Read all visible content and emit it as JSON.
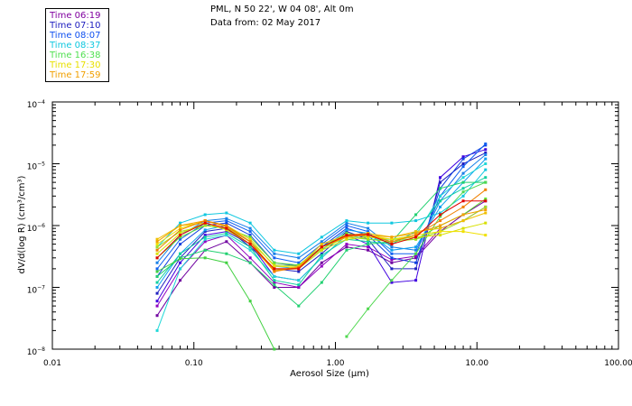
{
  "header": {
    "line1": "PML, N 50 22', W 04 08', Alt 0m",
    "line2": "Data from: 02 May 2017"
  },
  "chart_data": {
    "type": "line",
    "xscale": "log",
    "yscale": "log",
    "xlim": [
      0.01,
      100
    ],
    "ylim": [
      1e-08,
      0.0001
    ],
    "xlabel": "Aerosol Size (μm)",
    "ylabel": "dV/d(log R) (cm³/cm³)",
    "x_ticks": [
      {
        "value": 0.01,
        "label": "0.01"
      },
      {
        "value": 0.1,
        "label": "0.10"
      },
      {
        "value": 1,
        "label": "1.00"
      },
      {
        "value": 10,
        "label": "10.00"
      },
      {
        "value": 100,
        "label": "100.00"
      }
    ],
    "y_ticks": [
      {
        "value": 1e-08,
        "mantissa": "10",
        "exp": "−8"
      },
      {
        "value": 1e-07,
        "mantissa": "10",
        "exp": "−7"
      },
      {
        "value": 1e-06,
        "mantissa": "10",
        "exp": "−6"
      },
      {
        "value": 1e-05,
        "mantissa": "10",
        "exp": "−5"
      },
      {
        "value": 0.0001,
        "mantissa": "10",
        "exp": "−4"
      }
    ],
    "sizes": [
      0.055,
      0.08,
      0.12,
      0.17,
      0.25,
      0.37,
      0.55,
      0.8,
      1.2,
      1.7,
      2.5,
      3.7,
      5.5,
      8.0,
      11.5
    ],
    "legend": [
      {
        "label": "Time 06:19",
        "color": "#8000a0"
      },
      {
        "label": "Time 07:10",
        "color": "#2020c0"
      },
      {
        "label": "Time 08:07",
        "color": "#1050f0"
      },
      {
        "label": "Time 08:37",
        "color": "#10c8e0"
      },
      {
        "label": "Time 16:38",
        "color": "#50e050"
      },
      {
        "label": "Time 17:30",
        "color": "#e8e000"
      },
      {
        "label": "Time 17:59",
        "color": "#f0a000"
      }
    ],
    "series": [
      {
        "color": "#7000a0",
        "values": [
          3.5e-08,
          1.3e-07,
          4e-07,
          5.5e-07,
          2.5e-07,
          1e-07,
          1e-07,
          2.5e-07,
          4.5e-07,
          4e-07,
          2.5e-07,
          3e-07,
          8e-07,
          1.5e-06,
          2.5e-06
        ]
      },
      {
        "color": "#9000c0",
        "values": [
          5e-08,
          2e-07,
          5.5e-07,
          7e-07,
          3e-07,
          1.2e-07,
          1e-07,
          2.2e-07,
          5e-07,
          4.5e-07,
          2.8e-07,
          3.2e-07,
          9e-07,
          1.2e-06,
          2e-06
        ]
      },
      {
        "color": "#4000e0",
        "values": [
          6e-08,
          2.5e-07,
          7e-07,
          8e-07,
          5e-07,
          1.5e-07,
          1.3e-07,
          3e-07,
          7e-07,
          5e-07,
          1.2e-07,
          1.3e-07,
          6e-06,
          1.3e-05,
          1.7e-05
        ]
      },
      {
        "color": "#2020c0",
        "values": [
          8e-08,
          3e-07,
          8e-07,
          9e-07,
          4.5e-07,
          2e-07,
          1.8e-07,
          3.5e-07,
          8e-07,
          6e-07,
          2e-07,
          2e-07,
          5e-06,
          1e-05,
          1.5e-05
        ]
      },
      {
        "color": "#1040e0",
        "values": [
          1.5e-07,
          5e-07,
          1e-06,
          1.1e-06,
          7e-07,
          2.5e-07,
          2.2e-07,
          4.5e-07,
          9e-07,
          7e-07,
          3e-07,
          2.5e-07,
          4e-06,
          1.2e-05,
          2e-05
        ]
      },
      {
        "color": "#1060f0",
        "values": [
          2e-07,
          6e-07,
          1.1e-06,
          1.2e-06,
          8e-07,
          3e-07,
          2.5e-07,
          5e-07,
          1e-06,
          8e-07,
          3.5e-07,
          3.5e-07,
          3e-06,
          9e-06,
          2.1e-05
        ]
      },
      {
        "color": "#1880e8",
        "values": [
          2.5e-07,
          7e-07,
          1.2e-06,
          1.3e-06,
          9e-07,
          3.5e-07,
          3e-07,
          5.5e-07,
          1.1e-06,
          9e-07,
          4.5e-07,
          4e-07,
          2.5e-06,
          7e-06,
          1.4e-05
        ]
      },
      {
        "color": "#10a0f0",
        "values": [
          1e-07,
          3.5e-07,
          8.5e-07,
          1e-06,
          6e-07,
          2.2e-07,
          2e-07,
          4e-07,
          8.5e-07,
          7.5e-07,
          4e-07,
          4.5e-07,
          2e-06,
          5e-06,
          1.2e-05
        ]
      },
      {
        "color": "#10c8e0",
        "values": [
          4.5e-07,
          1.1e-06,
          1.5e-06,
          1.6e-06,
          1.1e-06,
          4e-07,
          3.5e-07,
          6.5e-07,
          1.2e-06,
          1.1e-06,
          1.1e-06,
          1.2e-06,
          1.6e-06,
          3e-06,
          8e-06
        ]
      },
      {
        "color": "#20d8d8",
        "values": [
          2e-08,
          2e-07,
          6e-07,
          7e-07,
          4e-07,
          1.5e-07,
          1.3e-07,
          3e-07,
          7e-07,
          6e-07,
          6e-07,
          7e-07,
          3e-06,
          6e-06,
          1e-05
        ]
      },
      {
        "color": "#10d0a0",
        "values": [
          1.2e-07,
          3.5e-07,
          6.5e-07,
          7.5e-07,
          4.5e-07,
          1.3e-07,
          1.1e-07,
          3.3e-07,
          6e-07,
          5.5e-07,
          5e-07,
          8e-07,
          2.5e-06,
          4e-06,
          6e-06
        ]
      },
      {
        "color": "#20d070",
        "values": [
          1.5e-07,
          3e-07,
          4e-07,
          3.5e-07,
          2.5e-07,
          1.1e-07,
          5e-08,
          1.2e-07,
          4e-07,
          5e-07,
          5.5e-07,
          1.5e-06,
          4e-06,
          5e-06,
          5e-06
        ]
      },
      {
        "color": "#40d040",
        "values": [
          1.8e-07,
          2.9e-07,
          3e-07,
          2.5e-07,
          6e-08,
          1e-08,
          null,
          null,
          null,
          null,
          null,
          null,
          null,
          null,
          null
        ]
      },
      {
        "color": "#50d850",
        "values": [
          null,
          null,
          null,
          null,
          null,
          null,
          null,
          null,
          1.6e-08,
          4.5e-08,
          1.3e-07,
          3.5e-07,
          1.4e-06,
          3.5e-06,
          5e-06
        ]
      },
      {
        "color": "#60e030",
        "values": [
          3e-07,
          6.5e-07,
          1e-06,
          9e-07,
          6.5e-07,
          2.5e-07,
          2.3e-07,
          4.5e-07,
          7.5e-07,
          6.5e-07,
          6e-07,
          6e-07,
          1e-06,
          1.5e-06,
          2.7e-06
        ]
      },
      {
        "color": "#a0e020",
        "values": [
          4.5e-07,
          8e-07,
          1e-06,
          9e-07,
          5.5e-07,
          2.3e-07,
          2.2e-07,
          4.2e-07,
          6.5e-07,
          6e-07,
          5.5e-07,
          6e-07,
          8e-07,
          1.2e-06,
          2e-06
        ]
      },
      {
        "color": "#d8e000",
        "values": [
          3.5e-07,
          7.5e-07,
          1.1e-06,
          8.5e-07,
          5e-07,
          2e-07,
          2e-07,
          4e-07,
          6e-07,
          6.5e-07,
          6e-07,
          6.5e-07,
          7e-07,
          9e-07,
          1.1e-06
        ]
      },
      {
        "color": "#f0e000",
        "values": [
          5e-07,
          9e-07,
          1.2e-06,
          1e-06,
          6e-07,
          2.2e-07,
          2.1e-07,
          4.5e-07,
          6.5e-07,
          7e-07,
          6e-07,
          7e-07,
          8e-07,
          8e-07,
          7e-07
        ]
      },
      {
        "color": "#f0c000",
        "values": [
          6e-07,
          1e-06,
          1.1e-06,
          9e-07,
          5e-07,
          1.8e-07,
          2.2e-07,
          5e-07,
          7e-07,
          7.5e-07,
          6.5e-07,
          8e-07,
          9e-07,
          1.2e-06,
          1.6e-06
        ]
      },
      {
        "color": "#f0a000",
        "values": [
          5.5e-07,
          1e-06,
          1.2e-06,
          9.5e-07,
          5.5e-07,
          1.9e-07,
          2e-07,
          4.5e-07,
          6.5e-07,
          7e-07,
          6.5e-07,
          7.5e-07,
          1e-06,
          1.5e-06,
          1.8e-06
        ]
      },
      {
        "color": "#f08000",
        "values": [
          4e-07,
          8.5e-07,
          1.2e-06,
          1e-06,
          5.5e-07,
          1.8e-07,
          2.1e-07,
          4.5e-07,
          6.8e-07,
          7e-07,
          5.5e-07,
          7e-07,
          1.2e-06,
          2e-06,
          3.8e-06
        ]
      },
      {
        "color": "#e00000",
        "values": [
          3e-07,
          7e-07,
          1.1e-06,
          9e-07,
          5e-07,
          2e-07,
          2e-07,
          4.5e-07,
          7e-07,
          7.2e-07,
          5e-07,
          6.5e-07,
          1.5e-06,
          2.5e-06,
          2.5e-06
        ]
      }
    ]
  }
}
